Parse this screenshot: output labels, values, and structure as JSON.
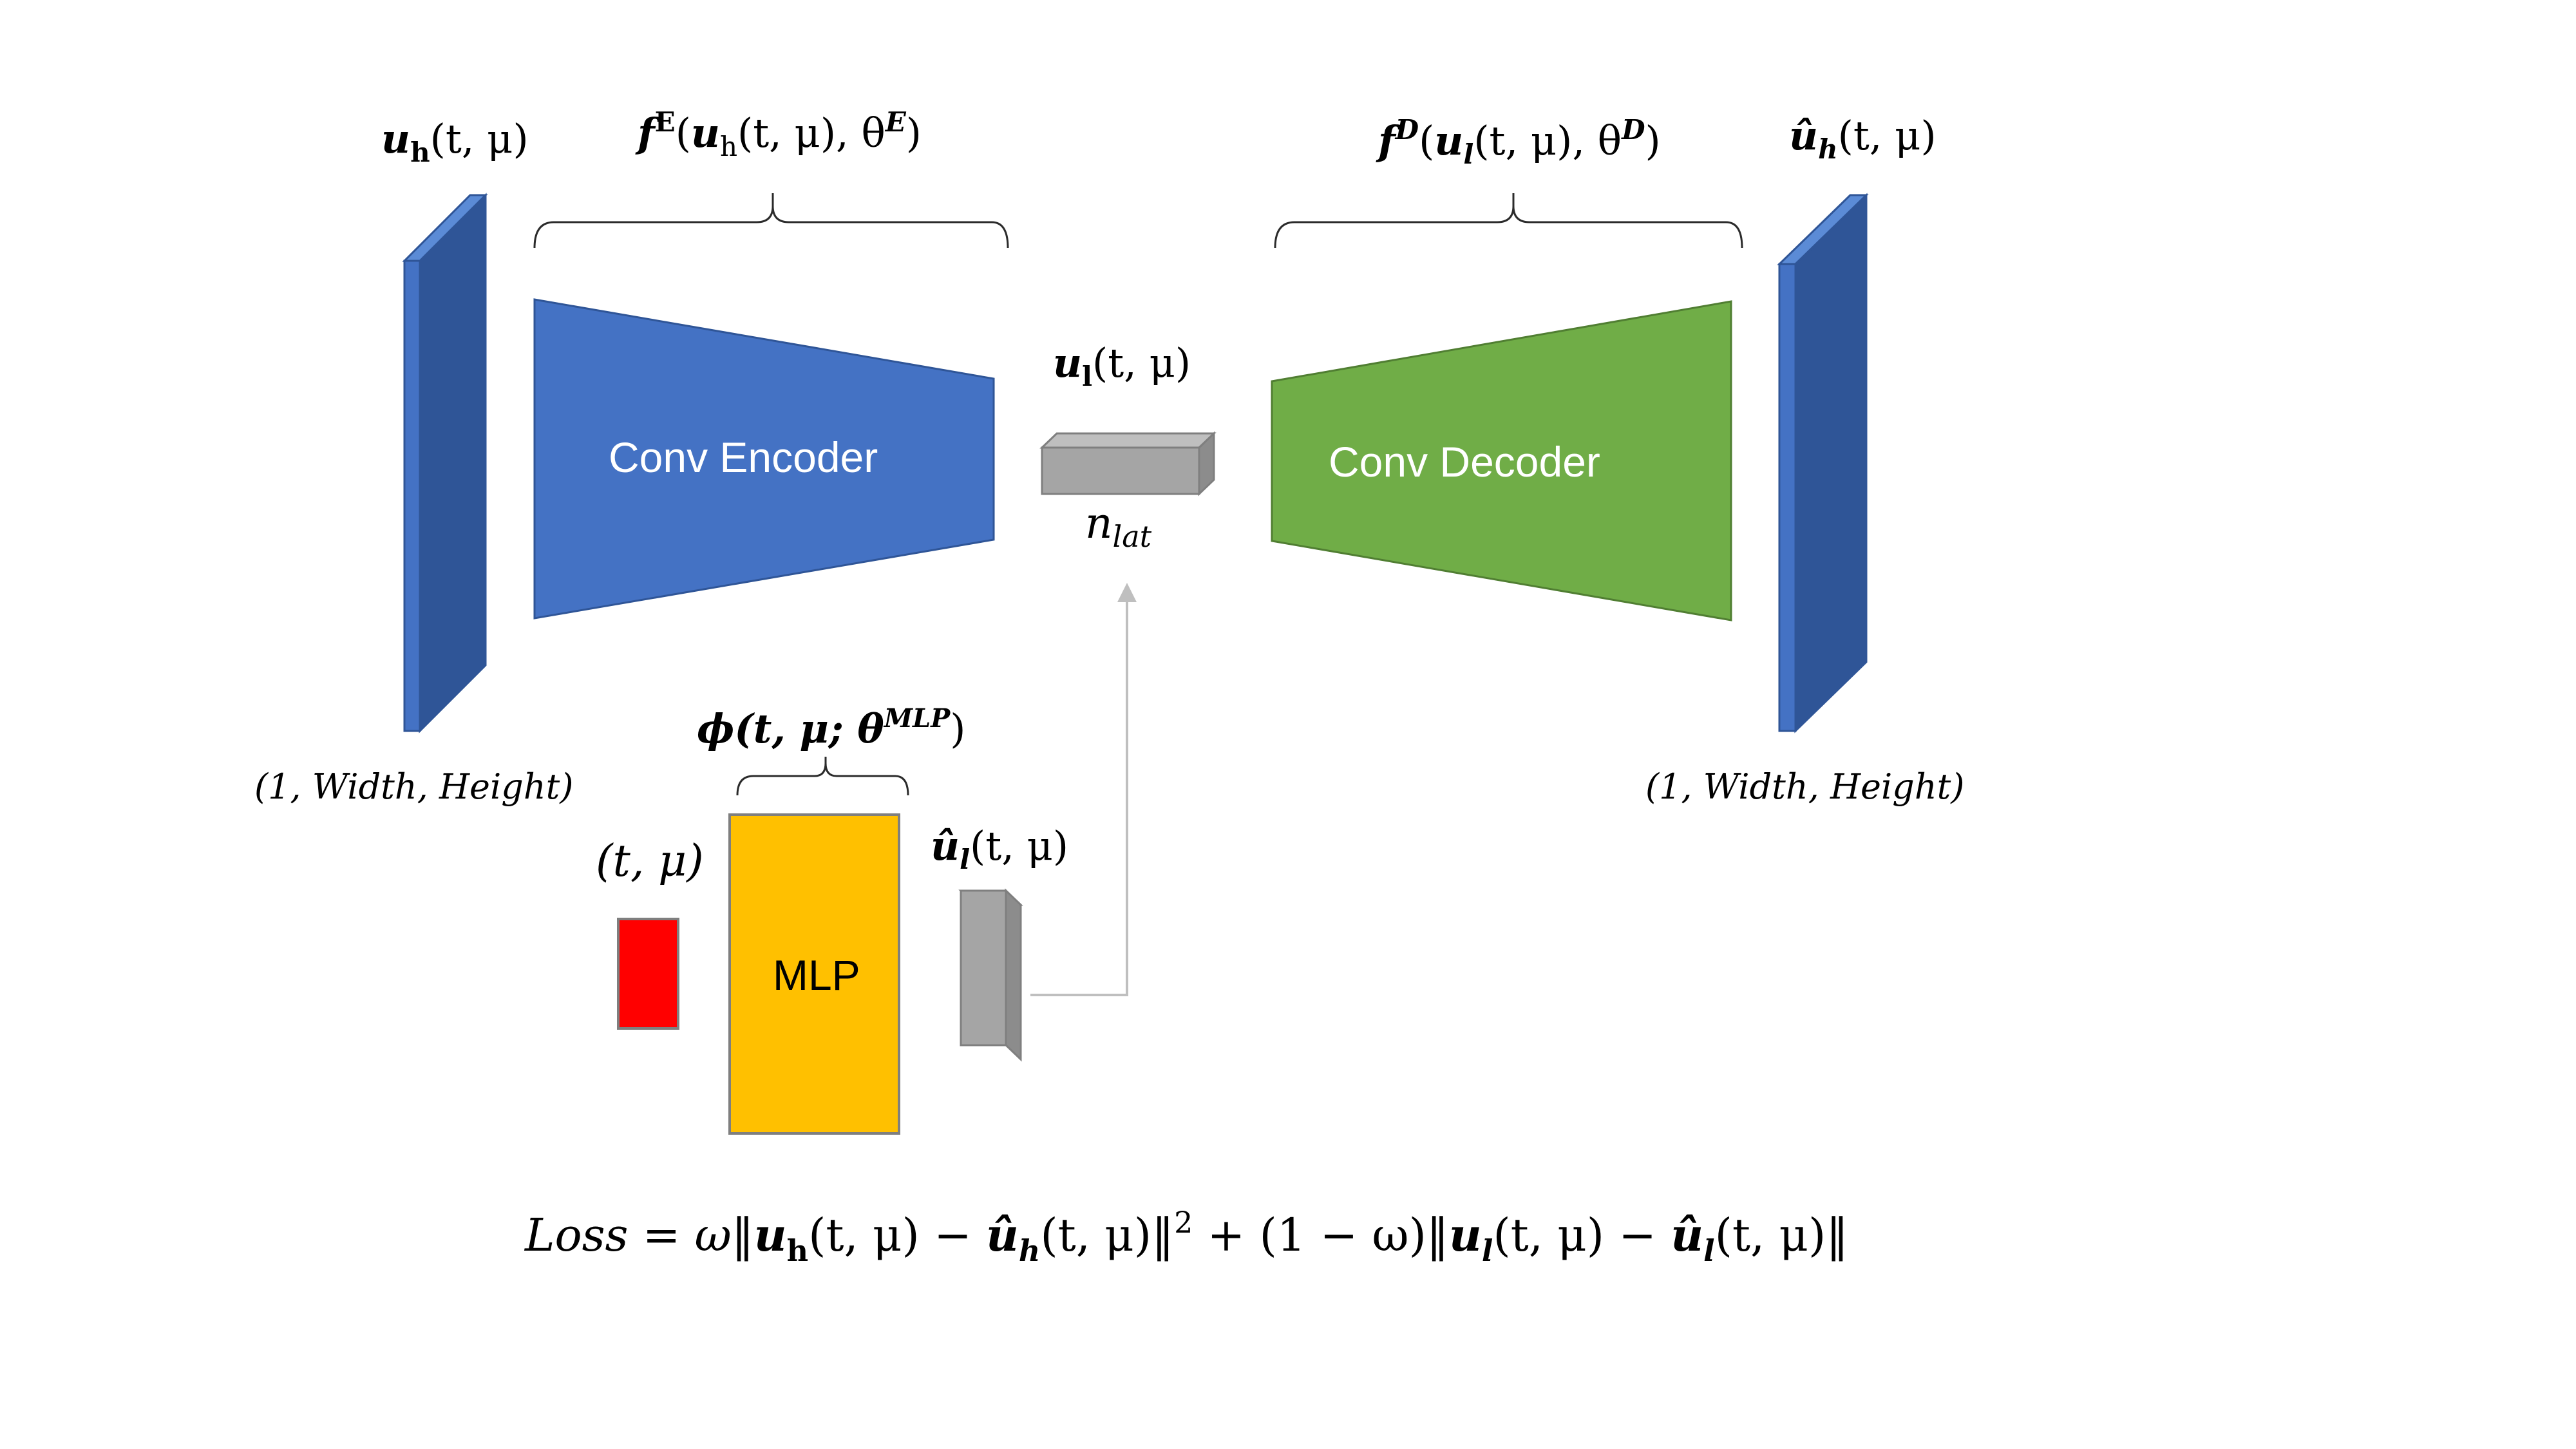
{
  "input_layer": {
    "label_main": "u",
    "label_sub": "h",
    "label_args": "(t, μ)",
    "dims": "(1, Width, Height)"
  },
  "encoder": {
    "label": "Conv Encoder",
    "brace_f": "f",
    "brace_sup": "E",
    "brace_open": "(",
    "brace_u": "u",
    "brace_u_sub": "h",
    "brace_args": "(t, μ), θ",
    "brace_theta_sup": "E",
    "brace_close": ")"
  },
  "latent": {
    "label_main": "u",
    "label_sub": "l",
    "label_args": "(t, μ)",
    "size_main": "n",
    "size_sub": "lat"
  },
  "decoder": {
    "label": "Conv Decoder",
    "brace_f": "f",
    "brace_sup": "D",
    "brace_open": "(",
    "brace_u": "u",
    "brace_u_sub": "l",
    "brace_args": "(t, μ), θ",
    "brace_theta_sup": "D",
    "brace_close": ")"
  },
  "output_layer": {
    "label_main": "û",
    "label_sub": "h",
    "label_args": "(t, μ)",
    "dims": "(1, Width, Height)"
  },
  "mlp": {
    "label": "MLP",
    "brace_phi": "ϕ(t, μ; θ",
    "brace_sup": "MLP",
    "brace_close": ")"
  },
  "mlp_input": {
    "label": "(t, μ)"
  },
  "mlp_output": {
    "label_main": "û",
    "label_sub": "l",
    "label_args": "(t, μ)"
  },
  "loss": {
    "p1": "Loss = ω‖",
    "p2": "u",
    "p2_sub": "h",
    "p3": "(t, μ) − ",
    "p4": "û",
    "p4_sub": "h",
    "p5": "(t, μ)‖",
    "p5_sup": "2",
    "p6": " + (1 − ω)‖",
    "p7": "u",
    "p7_sub": "l",
    "p8": "(t, μ) − ",
    "p9": "û",
    "p9_sub": "l",
    "p10": "(t, μ)‖"
  },
  "colors": {
    "blue": "#4472C4",
    "blue_dark": "#2F5597",
    "green": "#70AD47",
    "yellow": "#FFC000",
    "red": "#FF0000",
    "gray": "#A5A5A5",
    "gray_dark": "#7F7F7F"
  }
}
